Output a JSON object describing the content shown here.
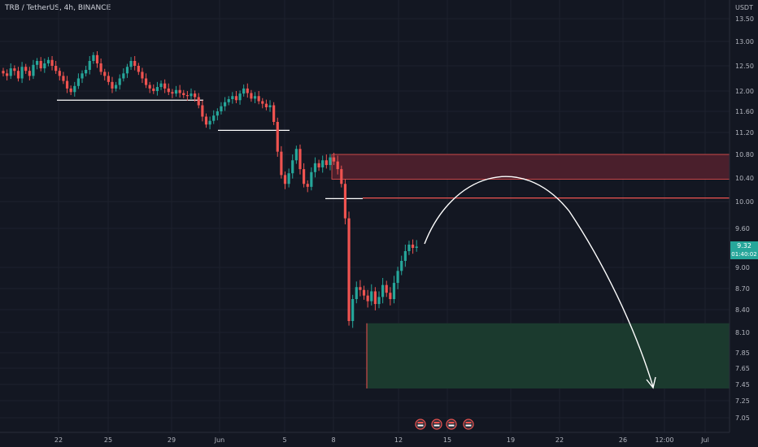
{
  "header": {
    "title": "TRB / TetherUS, 4h, BINANCE"
  },
  "price_axis": {
    "unit": "USDT",
    "last_price": "9.32",
    "countdown": "01:40:02"
  },
  "colors": {
    "background": "#131722",
    "bull": "#26a69a",
    "bear": "#ef5350",
    "resistance_zone": "#4a1f2c",
    "target_zone": "#1b3a2e"
  },
  "chart_data": {
    "type": "candlestick",
    "title": "TRB / TetherUS, 4h, BINANCE",
    "y_ticks": [
      "13.50",
      "13.00",
      "12.50",
      "12.00",
      "11.60",
      "11.20",
      "10.80",
      "10.40",
      "10.00",
      "9.60",
      "9.00",
      "8.70",
      "8.40",
      "8.10",
      "7.85",
      "7.65",
      "7.45",
      "7.25",
      "7.05"
    ],
    "x_ticks": [
      "22",
      "25",
      "29",
      "Jun",
      "5",
      "8",
      "12",
      "15",
      "19",
      "22",
      "26",
      "12:00",
      "Jul"
    ],
    "price_series": [
      12.35,
      12.3,
      12.45,
      12.4,
      12.25,
      12.48,
      12.4,
      12.3,
      12.52,
      12.6,
      12.45,
      12.55,
      12.62,
      12.5,
      12.4,
      12.3,
      12.2,
      12.05,
      11.98,
      12.1,
      12.25,
      12.35,
      12.42,
      12.6,
      12.72,
      12.55,
      12.38,
      12.3,
      12.18,
      12.05,
      12.12,
      12.25,
      12.35,
      12.48,
      12.6,
      12.5,
      12.38,
      12.25,
      12.12,
      12.05,
      12.0,
      12.08,
      12.15,
      12.05,
      11.98,
      11.95,
      12.02,
      11.96,
      11.92,
      11.9,
      11.95,
      11.88,
      11.72,
      11.5,
      11.35,
      11.42,
      11.52,
      11.6,
      11.7,
      11.78,
      11.84,
      11.9,
      11.82,
      11.95,
      12.05,
      11.96,
      11.85,
      11.9,
      11.8,
      11.75,
      11.68,
      11.72,
      11.4,
      10.85,
      10.45,
      10.3,
      10.48,
      10.7,
      10.9,
      10.55,
      10.3,
      10.25,
      10.5,
      10.65,
      10.58,
      10.7,
      10.62,
      10.75,
      10.68,
      10.55,
      10.3,
      9.75,
      8.25,
      8.55,
      8.72,
      8.68,
      8.6,
      8.52,
      8.66,
      8.48,
      8.58,
      8.75,
      8.64,
      8.55,
      8.78,
      8.95,
      9.1,
      9.25,
      9.35,
      9.3,
      9.32
    ],
    "levels": [
      {
        "type": "support",
        "price": 11.82
      },
      {
        "type": "support",
        "price": 11.24
      },
      {
        "type": "support",
        "price": 10.05
      },
      {
        "type": "resistance_line",
        "price": 10.06
      }
    ],
    "zones": [
      {
        "type": "resistance",
        "top": 10.8,
        "bottom": 10.38
      },
      {
        "type": "target",
        "top": 8.22,
        "bottom": 7.4
      }
    ],
    "last_price": 9.32,
    "projection": "up to ~10.45 then down to ~7.40"
  }
}
